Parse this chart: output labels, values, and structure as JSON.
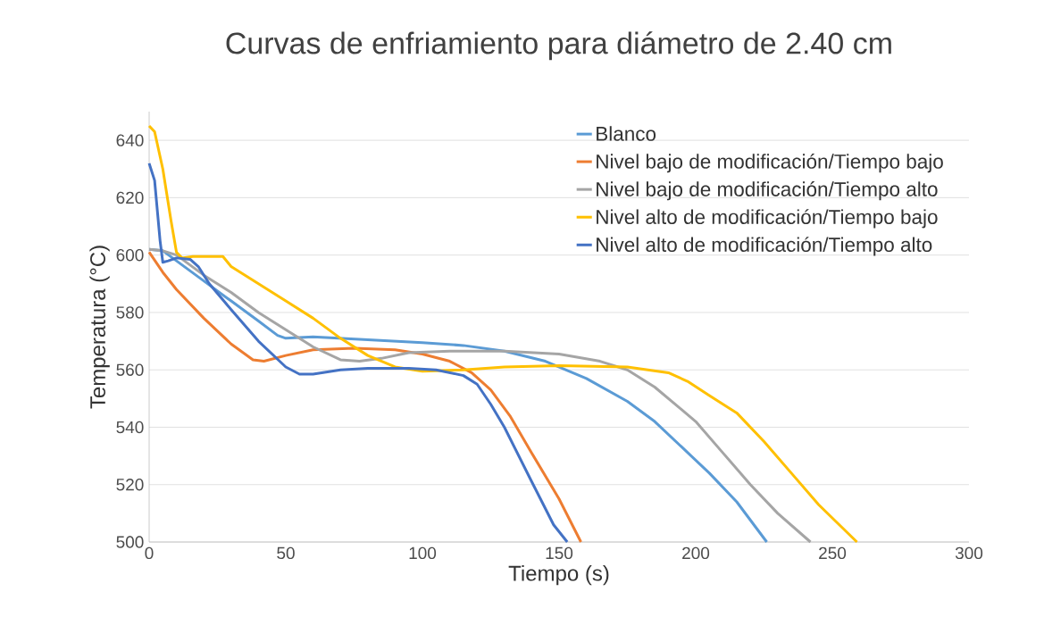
{
  "chart_data": {
    "type": "line",
    "title": "Curvas de enfriamiento para diámetro de 2.40 cm",
    "xlabel": "Tiempo (s)",
    "ylabel": "Temperatura (°C)",
    "xlim": [
      0,
      300
    ],
    "xticks": [
      0,
      50,
      100,
      150,
      200,
      250,
      300
    ],
    "ylim": [
      500,
      650
    ],
    "yticks": [
      500,
      520,
      540,
      560,
      580,
      600,
      620,
      640
    ],
    "grid": "y",
    "legend": "top right",
    "marker": "none",
    "line_style": "solid",
    "series": [
      {
        "name": "Blanco",
        "color": "#5b9bd5",
        "x": [
          0,
          5,
          10,
          20,
          30,
          40,
          47,
          50,
          60,
          80,
          100,
          115,
          130,
          145,
          160,
          175,
          185,
          195,
          205,
          215,
          226
        ],
        "values": [
          602,
          601.5,
          598,
          591,
          584,
          577,
          572,
          571,
          571.5,
          570.5,
          569.5,
          568.5,
          566.5,
          563,
          557,
          549,
          542,
          533,
          524,
          514,
          500
        ]
      },
      {
        "name": "Nivel bajo de modificación/Tiempo bajo",
        "color": "#ed7d31",
        "x": [
          0,
          5,
          10,
          20,
          30,
          38,
          42,
          50,
          60,
          75,
          90,
          100,
          110,
          118,
          125,
          132,
          140,
          150,
          158
        ],
        "values": [
          601,
          594,
          588,
          578,
          569,
          563.5,
          563,
          565,
          567,
          567.5,
          567,
          565.5,
          563,
          559,
          553,
          544,
          531,
          515,
          500
        ]
      },
      {
        "name": "Nivel bajo de modificación/Tiempo alto",
        "color": "#a5a5a5",
        "x": [
          0,
          5,
          10,
          20,
          30,
          40,
          50,
          60,
          70,
          77,
          85,
          95,
          110,
          130,
          150,
          165,
          175,
          185,
          195,
          200,
          210,
          220,
          230,
          242
        ],
        "values": [
          602,
          601.5,
          600,
          593,
          587,
          580,
          574,
          568,
          563.5,
          563,
          564,
          566,
          566.5,
          566.5,
          565.5,
          563,
          560,
          554,
          546,
          542,
          531,
          520,
          510,
          500
        ]
      },
      {
        "name": "Nivel alto de modificación/Tiempo bajo",
        "color": "#ffc000",
        "x": [
          0,
          2,
          5,
          8,
          10,
          12,
          16,
          27,
          30,
          40,
          50,
          60,
          70,
          80,
          90,
          100,
          115,
          130,
          150,
          175,
          190,
          197,
          205,
          215,
          225,
          235,
          245,
          259
        ],
        "values": [
          645,
          643,
          630,
          612,
          601,
          599,
          599.5,
          599.5,
          596,
          590,
          584,
          578,
          571,
          565,
          561,
          559.5,
          560,
          561,
          561.5,
          561,
          559,
          556,
          551,
          545,
          535,
          524,
          513,
          500
        ]
      },
      {
        "name": "Nivel alto de modificación/Tiempo alto",
        "color": "#4472c4",
        "x": [
          0,
          2,
          4,
          5,
          7,
          10,
          15,
          18,
          22,
          30,
          40,
          50,
          55,
          60,
          70,
          80,
          95,
          105,
          115,
          120,
          125,
          130,
          140,
          148,
          153
        ],
        "values": [
          632,
          626,
          605,
          597.5,
          598,
          599,
          598.5,
          596,
          590,
          581,
          570,
          561,
          558.5,
          558.5,
          560,
          560.5,
          560.5,
          560,
          558,
          555,
          548,
          540,
          521,
          506,
          500
        ]
      }
    ]
  }
}
